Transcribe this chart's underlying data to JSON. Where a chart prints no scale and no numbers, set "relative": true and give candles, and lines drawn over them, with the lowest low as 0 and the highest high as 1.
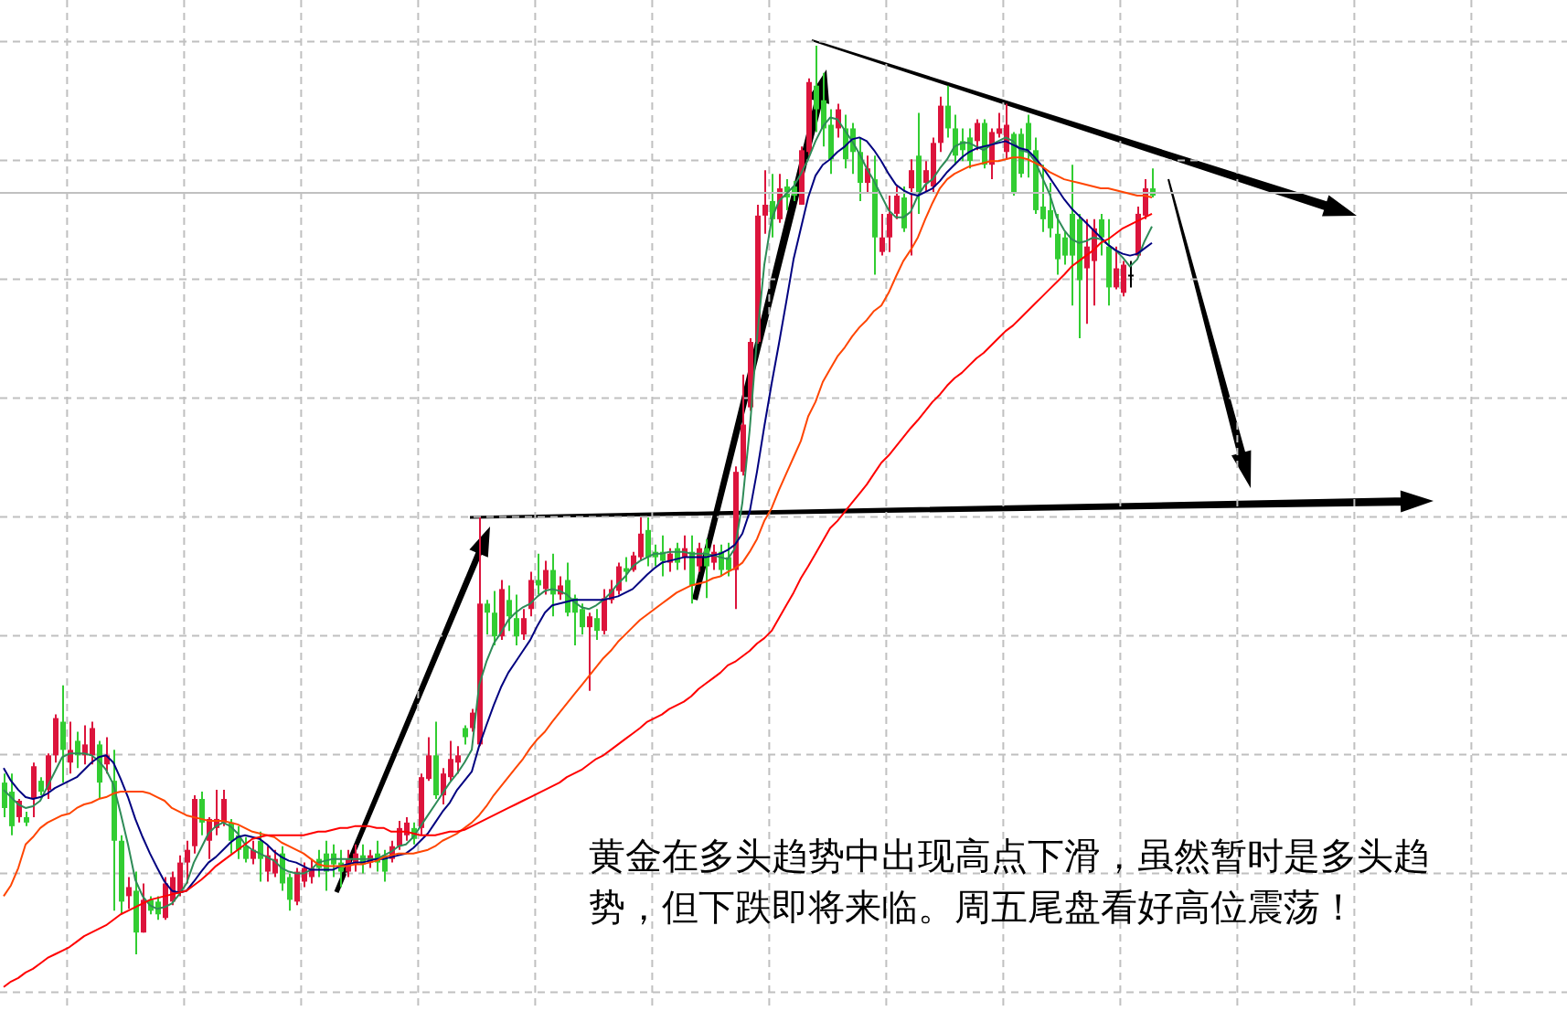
{
  "chart_data": {
    "type": "candlestick",
    "relative": true,
    "grid": true,
    "tick_labels": false,
    "categories": [
      null,
      null,
      null,
      null,
      null,
      null,
      null,
      null,
      null,
      null,
      null,
      null,
      null,
      null,
      null,
      null,
      null,
      null,
      null,
      null,
      null,
      null,
      null,
      null,
      null,
      null,
      null,
      null,
      null,
      null,
      null,
      null,
      null,
      null,
      null,
      null,
      null,
      null,
      null,
      null,
      null,
      null,
      null,
      null,
      null,
      null,
      null,
      null,
      null,
      null,
      null,
      null,
      null,
      null,
      null,
      null,
      null,
      null,
      null,
      null,
      null,
      null,
      null,
      null,
      null,
      null,
      null,
      null,
      null,
      null,
      null,
      null,
      null,
      null,
      null,
      null,
      null,
      null,
      null,
      null,
      null,
      null,
      null,
      null,
      null,
      null,
      null,
      null,
      null,
      null,
      null,
      null,
      null,
      null,
      null,
      null,
      null,
      null,
      null,
      null,
      null,
      null,
      null,
      null,
      null,
      null,
      null,
      null,
      null,
      null,
      null,
      null,
      null,
      null,
      null,
      null,
      null,
      null,
      null,
      null,
      null,
      null,
      null,
      null,
      null,
      null,
      null,
      null,
      null,
      null,
      null,
      null,
      null,
      null,
      null,
      null,
      null,
      null,
      null,
      null,
      null,
      null,
      null,
      null,
      null,
      null,
      null,
      null,
      null,
      null,
      null,
      null,
      null,
      null,
      null,
      null,
      null,
      null
    ],
    "ohlc": [
      [
        0.189,
        0.199,
        0.151,
        0.161
      ],
      [
        0.179,
        0.199,
        0.131,
        0.141
      ],
      [
        0.151,
        0.171,
        0.145,
        0.169
      ],
      [
        0.151,
        0.157,
        0.141,
        0.145
      ],
      [
        0.171,
        0.211,
        0.151,
        0.207
      ],
      [
        0.191,
        0.195,
        0.175,
        0.179
      ],
      [
        0.181,
        0.221,
        0.171,
        0.219
      ],
      [
        0.219,
        0.264,
        0.211,
        0.26
      ],
      [
        0.256,
        0.296,
        0.189,
        0.225
      ],
      [
        0.211,
        0.256,
        0.199,
        0.225
      ],
      [
        0.235,
        0.245,
        0.205,
        0.219
      ],
      [
        0.219,
        0.252,
        0.209,
        0.231
      ],
      [
        0.219,
        0.256,
        0.209,
        0.249
      ],
      [
        0.231,
        0.235,
        0.171,
        0.189
      ],
      [
        0.209,
        0.239,
        0.199,
        0.219
      ],
      [
        0.191,
        0.225,
        0.048,
        0.125
      ],
      [
        0.125,
        0.131,
        0.044,
        0.058
      ],
      [
        0.064,
        0.085,
        0.05,
        0.074
      ],
      [
        0.07,
        0.091,
        0,
        0.024
      ],
      [
        0.024,
        0.078,
        0.024,
        0.06
      ],
      [
        0.06,
        0.064,
        0.044,
        0.048
      ],
      [
        0.058,
        0.064,
        0.038,
        0.044
      ],
      [
        0.04,
        0.085,
        0.038,
        0.078
      ],
      [
        0.058,
        0.091,
        0.054,
        0.085
      ],
      [
        0.068,
        0.109,
        0.064,
        0.101
      ],
      [
        0.101,
        0.125,
        0.078,
        0.115
      ],
      [
        0.119,
        0.175,
        0.111,
        0.171
      ],
      [
        0.171,
        0.179,
        0.131,
        0.145
      ],
      [
        0.125,
        0.151,
        0.105,
        0.149
      ],
      [
        0.139,
        0.181,
        0.131,
        0.149
      ],
      [
        0.145,
        0.181,
        0.141,
        0.171
      ],
      [
        0.145,
        0.149,
        0.111,
        0.125
      ],
      [
        0.131,
        0.141,
        0.105,
        0.115
      ],
      [
        0.119,
        0.129,
        0.101,
        0.105
      ],
      [
        0.105,
        0.125,
        0.099,
        0.115
      ],
      [
        0.125,
        0.135,
        0.08,
        0.105
      ],
      [
        0.091,
        0.119,
        0.08,
        0.109
      ],
      [
        0.089,
        0.115,
        0.085,
        0.105
      ],
      [
        0.111,
        0.119,
        0.07,
        0.078
      ],
      [
        0.085,
        0.089,
        0.048,
        0.06
      ],
      [
        0.058,
        0.095,
        0.054,
        0.091
      ],
      [
        0.08,
        0.101,
        0.074,
        0.095
      ],
      [
        0.085,
        0.105,
        0.078,
        0.095
      ],
      [
        0.105,
        0.115,
        0.085,
        0.095
      ],
      [
        0.111,
        0.125,
        0.07,
        0.091
      ],
      [
        0.111,
        0.121,
        0.085,
        0.099
      ],
      [
        0.101,
        0.115,
        0.074,
        0.091
      ],
      [
        0.091,
        0.115,
        0.085,
        0.105
      ],
      [
        0.099,
        0.121,
        0.091,
        0.111
      ],
      [
        0.109,
        0.121,
        0.089,
        0.099
      ],
      [
        0.101,
        0.115,
        0.095,
        0.109
      ],
      [
        0.111,
        0.125,
        0.091,
        0.101
      ],
      [
        0.109,
        0.115,
        0.08,
        0.091
      ],
      [
        0.105,
        0.125,
        0.101,
        0.119
      ],
      [
        0.119,
        0.147,
        0.115,
        0.139
      ],
      [
        0.131,
        0.151,
        0.125,
        0.145
      ],
      [
        0.139,
        0.145,
        0.121,
        0.127
      ],
      [
        0.139,
        0.199,
        0.131,
        0.195
      ],
      [
        0.193,
        0.239,
        0.191,
        0.219
      ],
      [
        0.219,
        0.256,
        0.171,
        0.175
      ],
      [
        0.175,
        0.205,
        0.165,
        0.199
      ],
      [
        0.195,
        0.235,
        0.191,
        0.215
      ],
      [
        0.211,
        0.229,
        0.199,
        0.219
      ],
      [
        0.249,
        0.252,
        0.231,
        0.239
      ],
      [
        0.249,
        0.27,
        0.245,
        0.266
      ],
      [
        0.231,
        0.481,
        0.229,
        0.386
      ],
      [
        0.386,
        0.39,
        0.352,
        0.376
      ],
      [
        0.376,
        0.4,
        0.34,
        0.35
      ],
      [
        0.35,
        0.412,
        0.346,
        0.402
      ],
      [
        0.39,
        0.406,
        0.356,
        0.372
      ],
      [
        0.37,
        0.396,
        0.34,
        0.35
      ],
      [
        0.352,
        0.38,
        0.346,
        0.37
      ],
      [
        0.38,
        0.421,
        0.372,
        0.412
      ],
      [
        0.412,
        0.441,
        0.396,
        0.406
      ],
      [
        0.402,
        0.433,
        0.396,
        0.423
      ],
      [
        0.423,
        0.441,
        0.372,
        0.396
      ],
      [
        0.396,
        0.416,
        0.39,
        0.406
      ],
      [
        0.412,
        0.431,
        0.372,
        0.376
      ],
      [
        0.392,
        0.396,
        0.34,
        0.376
      ],
      [
        0.38,
        0.386,
        0.352,
        0.36
      ],
      [
        0.36,
        0.376,
        0.29,
        0.372
      ],
      [
        0.37,
        0.38,
        0.346,
        0.356
      ],
      [
        0.356,
        0.402,
        0.352,
        0.392
      ],
      [
        0.39,
        0.412,
        0.386,
        0.402
      ],
      [
        0.4,
        0.431,
        0.396,
        0.427
      ],
      [
        0.425,
        0.437,
        0.41,
        0.421
      ],
      [
        0.423,
        0.443,
        0.421,
        0.439
      ],
      [
        0.437,
        0.481,
        0.433,
        0.463
      ],
      [
        0.467,
        0.481,
        0.427,
        0.437
      ],
      [
        0.443,
        0.451,
        0.427,
        0.437
      ],
      [
        0.443,
        0.461,
        0.416,
        0.433
      ],
      [
        0.431,
        0.447,
        0.421,
        0.441
      ],
      [
        0.447,
        0.453,
        0.423,
        0.431
      ],
      [
        0.437,
        0.461,
        0.423,
        0.447
      ],
      [
        0.443,
        0.461,
        0.386,
        0.406
      ],
      [
        0.427,
        0.453,
        0.421,
        0.447
      ],
      [
        0.447,
        0.457,
        0.392,
        0.427
      ],
      [
        0.431,
        0.451,
        0.423,
        0.443
      ],
      [
        0.443,
        0.451,
        0.416,
        0.423
      ],
      [
        0.437,
        0.453,
        0.416,
        0.423
      ],
      [
        0.423,
        0.537,
        0.38,
        0.531
      ],
      [
        0.531,
        0.638,
        0.527,
        0.583
      ],
      [
        0.602,
        0.678,
        0.598,
        0.674
      ],
      [
        0.674,
        0.825,
        0.672,
        0.813
      ],
      [
        0.813,
        0.863,
        0.793,
        0.825
      ],
      [
        0.829,
        0.859,
        0.789,
        0.809
      ],
      [
        0.809,
        0.859,
        0.805,
        0.843
      ],
      [
        0.845,
        0.853,
        0.819,
        0.833
      ],
      [
        0.845,
        0.851,
        0.829,
        0.835
      ],
      [
        0.825,
        0.889,
        0.825,
        0.885
      ],
      [
        0.883,
        0.964,
        0.879,
        0.96
      ],
      [
        0.956,
        1,
        0.905,
        0.93
      ],
      [
        0.94,
        0.97,
        0.889,
        0.909
      ],
      [
        0.913,
        0.93,
        0.859,
        0.875
      ],
      [
        0.909,
        0.936,
        0.899,
        0.93
      ],
      [
        0.909,
        0.924,
        0.865,
        0.875
      ],
      [
        0.909,
        0.915,
        0.859,
        0.883
      ],
      [
        0.883,
        0.899,
        0.829,
        0.849
      ],
      [
        0.849,
        0.879,
        0.839,
        0.865
      ],
      [
        0.853,
        0.879,
        0.748,
        0.789
      ],
      [
        0.773,
        0.815,
        0.769,
        0.789
      ],
      [
        0.789,
        0.835,
        0.773,
        0.815
      ],
      [
        0.815,
        0.845,
        0.809,
        0.835
      ],
      [
        0.833,
        0.845,
        0.795,
        0.799
      ],
      [
        0.843,
        0.875,
        0.769,
        0.863
      ],
      [
        0.879,
        0.926,
        0.815,
        0.839
      ],
      [
        0.849,
        0.873,
        0.839,
        0.863
      ],
      [
        0.845,
        0.899,
        0.839,
        0.893
      ],
      [
        0.893,
        0.944,
        0.883,
        0.934
      ],
      [
        0.934,
        0.956,
        0.899,
        0.909
      ],
      [
        0.909,
        0.924,
        0.869,
        0.879
      ],
      [
        0.895,
        0.909,
        0.873,
        0.885
      ],
      [
        0.899,
        0.909,
        0.865,
        0.873
      ],
      [
        0.895,
        0.919,
        0.885,
        0.915
      ],
      [
        0.915,
        0.919,
        0.865,
        0.869
      ],
      [
        0.869,
        0.909,
        0.853,
        0.905
      ],
      [
        0.903,
        0.926,
        0.899,
        0.909
      ],
      [
        0.883,
        0.936,
        0.875,
        0.913
      ],
      [
        0.903,
        0.905,
        0.835,
        0.839
      ],
      [
        0.903,
        0.909,
        0.855,
        0.859
      ],
      [
        0.915,
        0.924,
        0.855,
        0.885
      ],
      [
        0.885,
        0.899,
        0.815,
        0.819
      ],
      [
        0.823,
        0.869,
        0.795,
        0.809
      ],
      [
        0.819,
        0.849,
        0.789,
        0.799
      ],
      [
        0.793,
        0.815,
        0.748,
        0.765
      ],
      [
        0.789,
        0.795,
        0.759,
        0.769
      ],
      [
        0.815,
        0.869,
        0.714,
        0.769
      ],
      [
        0.809,
        0.815,
        0.678,
        0.742
      ],
      [
        0.755,
        0.809,
        0.694,
        0.779
      ],
      [
        0.763,
        0.809,
        0.714,
        0.799
      ],
      [
        0.809,
        0.815,
        0.769,
        0.789
      ],
      [
        0.779,
        0.809,
        0.714,
        0.734
      ],
      [
        0.734,
        0.779,
        0.732,
        0.755
      ],
      [
        0.728,
        0.763,
        0.724,
        0.759
      ],
      [
        0.748,
        0.763,
        0.734,
        0.748
      ],
      [
        0.769,
        0.823,
        0.767,
        0.815
      ],
      [
        0.813,
        0.853,
        0.809,
        0.843
      ],
      [
        0.843,
        0.865,
        0.833,
        0.835
      ]
    ],
    "colors": [
      "#32cd32",
      "#32cd32",
      "#dc143c",
      "#32cd32",
      "#dc143c",
      "#32cd32",
      "#dc143c",
      "#dc143c",
      "#32cd32",
      "#dc143c",
      "#32cd32",
      "#dc143c",
      "#dc143c",
      "#32cd32",
      "#dc143c",
      "#32cd32",
      "#32cd32",
      "#dc143c",
      "#32cd32",
      "#dc143c",
      "#32cd32",
      "#32cd32",
      "#dc143c",
      "#dc143c",
      "#dc143c",
      "#dc143c",
      "#dc143c",
      "#32cd32",
      "#dc143c",
      "#dc143c",
      "#dc143c",
      "#32cd32",
      "#32cd32",
      "#32cd32",
      "#dc143c",
      "#32cd32",
      "#dc143c",
      "#dc143c",
      "#32cd32",
      "#32cd32",
      "#dc143c",
      "#dc143c",
      "#dc143c",
      "#32cd32",
      "#32cd32",
      "#32cd32",
      "#32cd32",
      "#dc143c",
      "#dc143c",
      "#32cd32",
      "#dc143c",
      "#32cd32",
      "#32cd32",
      "#dc143c",
      "#dc143c",
      "#dc143c",
      "#32cd32",
      "#dc143c",
      "#dc143c",
      "#32cd32",
      "#dc143c",
      "#dc143c",
      "#dc143c",
      "#32cd32",
      "#dc143c",
      "#dc143c",
      "#32cd32",
      "#32cd32",
      "#dc143c",
      "#32cd32",
      "#32cd32",
      "#dc143c",
      "#dc143c",
      "#32cd32",
      "#dc143c",
      "#32cd32",
      "#dc143c",
      "#32cd32",
      "#32cd32",
      "#32cd32",
      "#dc143c",
      "#32cd32",
      "#dc143c",
      "#dc143c",
      "#dc143c",
      "#32cd32",
      "#dc143c",
      "#dc143c",
      "#32cd32",
      "#32cd32",
      "#32cd32",
      "#dc143c",
      "#32cd32",
      "#dc143c",
      "#32cd32",
      "#dc143c",
      "#32cd32",
      "#dc143c",
      "#32cd32",
      "#32cd32",
      "#dc143c",
      "#dc143c",
      "#dc143c",
      "#dc143c",
      "#dc143c",
      "#32cd32",
      "#dc143c",
      "#32cd32",
      "#32cd32",
      "#dc143c",
      "#dc143c",
      "#32cd32",
      "#32cd32",
      "#32cd32",
      "#dc143c",
      "#32cd32",
      "#32cd32",
      "#32cd32",
      "#dc143c",
      "#32cd32",
      "#dc143c",
      "#dc143c",
      "#dc143c",
      "#32cd32",
      "#dc143c",
      "#32cd32",
      "#dc143c",
      "#dc143c",
      "#dc143c",
      "#32cd32",
      "#32cd32",
      "#32cd32",
      "#32cd32",
      "#dc143c",
      "#32cd32",
      "#dc143c",
      "#dc143c",
      "#dc143c",
      "#32cd32",
      "#32cd32",
      "#32cd32",
      "#32cd32",
      "#32cd32",
      "#32cd32",
      "#32cd32",
      "#32cd32",
      "#32cd32",
      "#32cd32",
      "#dc143c",
      "#dc143c",
      "#32cd32",
      "#32cd32",
      "#dc143c",
      "#dc143c",
      "#000000",
      "#dc143c",
      "#dc143c",
      "#32cd32"
    ],
    "series": [
      {
        "type": "line",
        "color": "#2e8b57",
        "values": [
          0.181,
          0.173,
          0.165,
          0.161,
          0.163,
          0.169,
          0.185,
          0.201,
          0.217,
          0.221,
          0.221,
          0.221,
          0.219,
          0.213,
          0.203,
          0.187,
          0.155,
          0.121,
          0.082,
          0.064,
          0.054,
          0.05,
          0.052,
          0.056,
          0.066,
          0.078,
          0.101,
          0.117,
          0.133,
          0.141,
          0.145,
          0.141,
          0.133,
          0.121,
          0.115,
          0.111,
          0.107,
          0.103,
          0.095,
          0.091,
          0.089,
          0.089,
          0.093,
          0.101,
          0.103,
          0.105,
          0.105,
          0.105,
          0.105,
          0.105,
          0.105,
          0.105,
          0.109,
          0.113,
          0.119,
          0.121,
          0.129,
          0.141,
          0.153,
          0.165,
          0.177,
          0.189,
          0.199,
          0.211,
          0.225,
          0.296,
          0.322,
          0.342,
          0.354,
          0.368,
          0.376,
          0.382,
          0.386,
          0.394,
          0.4,
          0.402,
          0.4,
          0.396,
          0.388,
          0.382,
          0.38,
          0.384,
          0.39,
          0.398,
          0.408,
          0.416,
          0.427,
          0.433,
          0.437,
          0.441,
          0.441,
          0.443,
          0.443,
          0.443,
          0.441,
          0.441,
          0.441,
          0.439,
          0.437,
          0.435,
          0.447,
          0.497,
          0.577,
          0.678,
          0.759,
          0.809,
          0.829,
          0.837,
          0.845,
          0.859,
          0.875,
          0.895,
          0.911,
          0.921,
          0.919,
          0.907,
          0.895,
          0.881,
          0.865,
          0.851,
          0.835,
          0.819,
          0.811,
          0.811,
          0.817,
          0.835,
          0.847,
          0.853,
          0.865,
          0.875,
          0.889,
          0.893,
          0.893,
          0.889,
          0.885,
          0.891,
          0.895,
          0.899,
          0.895,
          0.885,
          0.883,
          0.873,
          0.855,
          0.837,
          0.811,
          0.797,
          0.787,
          0.783,
          0.785,
          0.789,
          0.787,
          0.781,
          0.775,
          0.767,
          0.757,
          0.765,
          0.785,
          0.801
        ]
      },
      {
        "type": "line",
        "color": "#000080",
        "values": [
          0.205,
          0.191,
          0.181,
          0.173,
          0.171,
          0.173,
          0.177,
          0.183,
          0.187,
          0.191,
          0.195,
          0.203,
          0.211,
          0.217,
          0.219,
          0.211,
          0.193,
          0.173,
          0.149,
          0.129,
          0.111,
          0.095,
          0.08,
          0.07,
          0.068,
          0.07,
          0.08,
          0.091,
          0.101,
          0.107,
          0.115,
          0.123,
          0.129,
          0.131,
          0.129,
          0.127,
          0.121,
          0.113,
          0.107,
          0.103,
          0.101,
          0.097,
          0.093,
          0.093,
          0.093,
          0.093,
          0.097,
          0.099,
          0.101,
          0.101,
          0.103,
          0.105,
          0.105,
          0.107,
          0.109,
          0.111,
          0.117,
          0.125,
          0.133,
          0.145,
          0.157,
          0.167,
          0.181,
          0.191,
          0.201,
          0.229,
          0.252,
          0.274,
          0.294,
          0.31,
          0.322,
          0.334,
          0.346,
          0.362,
          0.376,
          0.384,
          0.386,
          0.388,
          0.39,
          0.39,
          0.39,
          0.39,
          0.39,
          0.392,
          0.394,
          0.398,
          0.402,
          0.41,
          0.418,
          0.425,
          0.431,
          0.433,
          0.435,
          0.437,
          0.437,
          0.437,
          0.437,
          0.439,
          0.441,
          0.445,
          0.451,
          0.463,
          0.487,
          0.531,
          0.581,
          0.628,
          0.672,
          0.718,
          0.765,
          0.799,
          0.833,
          0.857,
          0.869,
          0.875,
          0.883,
          0.889,
          0.897,
          0.899,
          0.895,
          0.885,
          0.873,
          0.859,
          0.847,
          0.841,
          0.837,
          0.835,
          0.839,
          0.843,
          0.851,
          0.861,
          0.869,
          0.877,
          0.883,
          0.887,
          0.889,
          0.891,
          0.893,
          0.895,
          0.891,
          0.887,
          0.885,
          0.877,
          0.867,
          0.855,
          0.843,
          0.831,
          0.821,
          0.813,
          0.805,
          0.797,
          0.789,
          0.781,
          0.775,
          0.771,
          0.769,
          0.771,
          0.777,
          0.783
        ]
      },
      {
        "type": "line",
        "color": "#ff4500",
        "values": [
          0.064,
          0.076,
          0.095,
          0.121,
          0.129,
          0.139,
          0.145,
          0.149,
          0.153,
          0.155,
          0.161,
          0.165,
          0.167,
          0.171,
          0.173,
          0.177,
          0.179,
          0.179,
          0.179,
          0.179,
          0.177,
          0.173,
          0.169,
          0.161,
          0.157,
          0.153,
          0.151,
          0.149,
          0.147,
          0.147,
          0.147,
          0.145,
          0.143,
          0.139,
          0.135,
          0.133,
          0.131,
          0.129,
          0.123,
          0.119,
          0.115,
          0.111,
          0.105,
          0.099,
          0.097,
          0.097,
          0.097,
          0.097,
          0.099,
          0.099,
          0.101,
          0.103,
          0.107,
          0.109,
          0.111,
          0.111,
          0.111,
          0.113,
          0.115,
          0.119,
          0.125,
          0.129,
          0.133,
          0.139,
          0.145,
          0.153,
          0.163,
          0.175,
          0.185,
          0.195,
          0.205,
          0.215,
          0.227,
          0.237,
          0.245,
          0.256,
          0.266,
          0.276,
          0.286,
          0.296,
          0.306,
          0.316,
          0.326,
          0.334,
          0.344,
          0.352,
          0.36,
          0.368,
          0.374,
          0.38,
          0.386,
          0.392,
          0.398,
          0.402,
          0.406,
          0.408,
          0.41,
          0.414,
          0.416,
          0.421,
          0.425,
          0.431,
          0.443,
          0.457,
          0.477,
          0.491,
          0.511,
          0.529,
          0.547,
          0.565,
          0.592,
          0.608,
          0.63,
          0.644,
          0.658,
          0.668,
          0.68,
          0.69,
          0.698,
          0.708,
          0.714,
          0.728,
          0.746,
          0.763,
          0.775,
          0.789,
          0.809,
          0.827,
          0.843,
          0.853,
          0.859,
          0.863,
          0.867,
          0.869,
          0.871,
          0.873,
          0.873,
          0.875,
          0.877,
          0.877,
          0.875,
          0.871,
          0.867,
          0.861,
          0.857,
          0.853,
          0.851,
          0.849,
          0.847,
          0.845,
          0.843,
          0.843,
          0.841,
          0.839,
          0.837,
          0.835,
          0.835,
          0.833
        ]
      },
      {
        "type": "line",
        "color": "#ff0000",
        "values": [
          -0.036,
          -0.03,
          -0.026,
          -0.02,
          -0.016,
          -0.01,
          -0.004,
          0,
          0.004,
          0.008,
          0.014,
          0.02,
          0.024,
          0.028,
          0.032,
          0.038,
          0.044,
          0.048,
          0.052,
          0.056,
          0.06,
          0.062,
          0.064,
          0.066,
          0.068,
          0.07,
          0.076,
          0.082,
          0.089,
          0.097,
          0.103,
          0.109,
          0.115,
          0.121,
          0.127,
          0.129,
          0.131,
          0.131,
          0.131,
          0.131,
          0.131,
          0.131,
          0.133,
          0.135,
          0.135,
          0.137,
          0.139,
          0.139,
          0.141,
          0.141,
          0.141,
          0.139,
          0.139,
          0.135,
          0.135,
          0.135,
          0.133,
          0.131,
          0.131,
          0.131,
          0.133,
          0.135,
          0.135,
          0.137,
          0.141,
          0.145,
          0.149,
          0.153,
          0.157,
          0.161,
          0.165,
          0.169,
          0.173,
          0.177,
          0.181,
          0.185,
          0.189,
          0.195,
          0.199,
          0.203,
          0.209,
          0.215,
          0.219,
          0.225,
          0.231,
          0.237,
          0.243,
          0.249,
          0.256,
          0.26,
          0.264,
          0.27,
          0.274,
          0.278,
          0.284,
          0.292,
          0.298,
          0.304,
          0.31,
          0.318,
          0.322,
          0.328,
          0.334,
          0.342,
          0.348,
          0.356,
          0.37,
          0.384,
          0.398,
          0.414,
          0.427,
          0.441,
          0.455,
          0.469,
          0.477,
          0.487,
          0.497,
          0.507,
          0.517,
          0.529,
          0.541,
          0.549,
          0.559,
          0.569,
          0.579,
          0.588,
          0.598,
          0.608,
          0.616,
          0.626,
          0.634,
          0.64,
          0.648,
          0.656,
          0.662,
          0.67,
          0.678,
          0.686,
          0.692,
          0.7,
          0.708,
          0.716,
          0.724,
          0.732,
          0.74,
          0.748,
          0.757,
          0.763,
          0.769,
          0.775,
          0.783,
          0.787,
          0.793,
          0.799,
          0.803,
          0.807,
          0.811,
          0.815
        ]
      }
    ],
    "ref_lines": [
      {
        "axis": "y",
        "value": 0.838,
        "color": "#c0c0c0"
      }
    ],
    "annotations": [
      "黄金在多头趋势中出现高点下滑，虽然暂时是多头趋势，但下跌即将来临。周五尾盘看好高位震荡！"
    ]
  }
}
